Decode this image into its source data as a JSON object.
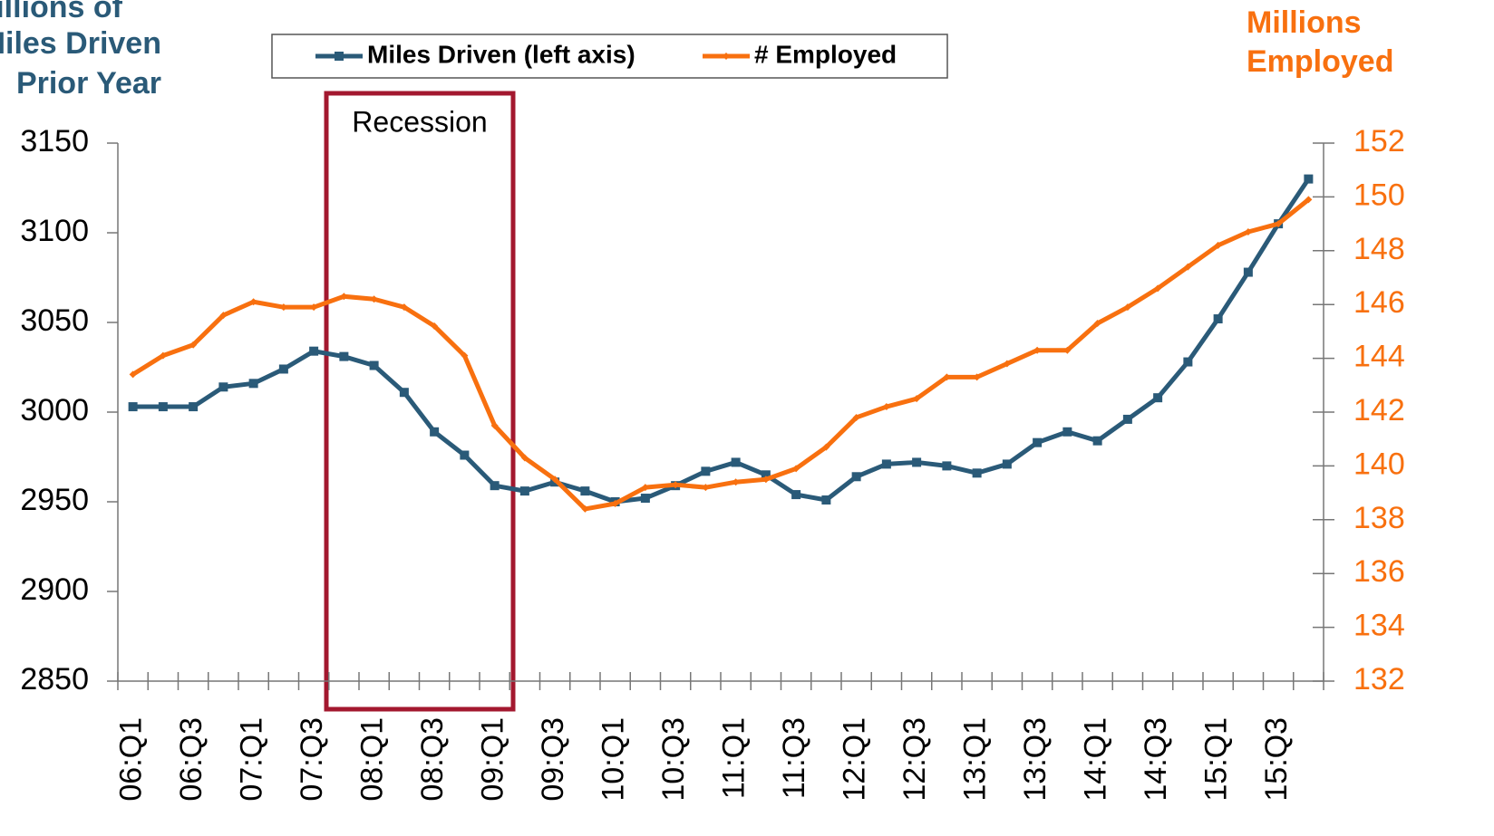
{
  "chart_data": {
    "type": "line",
    "ylabel": [
      "Billions of",
      "Miles Driven",
      "Prior Year"
    ],
    "y2label": [
      "Millions",
      "Employed"
    ],
    "annotations": [
      {
        "text": "Recession"
      }
    ],
    "categories": [
      "06:Q1",
      null,
      "06:Q3",
      null,
      "07:Q1",
      null,
      "07:Q3",
      null,
      "08:Q1",
      null,
      "08:Q3",
      null,
      "09:Q1",
      null,
      "09:Q3",
      null,
      "10:Q1",
      null,
      "10:Q3",
      null,
      "11:Q1",
      null,
      "11:Q3",
      null,
      "12:Q1",
      null,
      "12:Q3",
      null,
      "13:Q1",
      null,
      "13:Q3",
      null,
      "14:Q1",
      null,
      "14:Q3",
      null,
      "15:Q1",
      null,
      "15:Q3",
      null
    ],
    "ylim": [
      2850,
      3150
    ],
    "yticks": [
      2850,
      2900,
      2950,
      3000,
      3050,
      3100,
      3150
    ],
    "y2lim": [
      132,
      152
    ],
    "y2ticks": [
      132,
      134,
      136,
      138,
      140,
      142,
      144,
      146,
      148,
      150,
      152
    ],
    "grid": false,
    "series": [
      {
        "name": "Miles Driven (left axis)",
        "color": "#2a5a78",
        "marker": "square",
        "values": [
          3003,
          3003,
          3003,
          3014,
          3016,
          3024,
          3034,
          3031,
          3026,
          3011,
          2989,
          2976,
          2959,
          2956,
          2961,
          2956,
          2950,
          2952,
          2959,
          2967,
          2972,
          2965,
          2954,
          2951,
          2964,
          2971,
          2972,
          2970,
          2966,
          2971,
          2983,
          2989,
          2984,
          2996,
          3008,
          3028,
          3052,
          3078,
          3105,
          3130
        ]
      },
      {
        "name": "# Employed",
        "color": "#f8700f",
        "marker": "diamond",
        "axis": "y2",
        "values": [
          143.4,
          144.1,
          144.5,
          145.6,
          146.1,
          145.9,
          145.9,
          146.3,
          146.2,
          145.9,
          145.2,
          144.1,
          141.5,
          140.3,
          139.5,
          138.4,
          138.6,
          139.2,
          139.3,
          139.2,
          139.4,
          139.5,
          139.9,
          140.7,
          141.8,
          142.2,
          142.5,
          143.3,
          143.3,
          143.8,
          144.3,
          144.3,
          145.3,
          145.9,
          146.6,
          147.4,
          148.2,
          148.7,
          149.0,
          149.9
        ]
      }
    ]
  }
}
